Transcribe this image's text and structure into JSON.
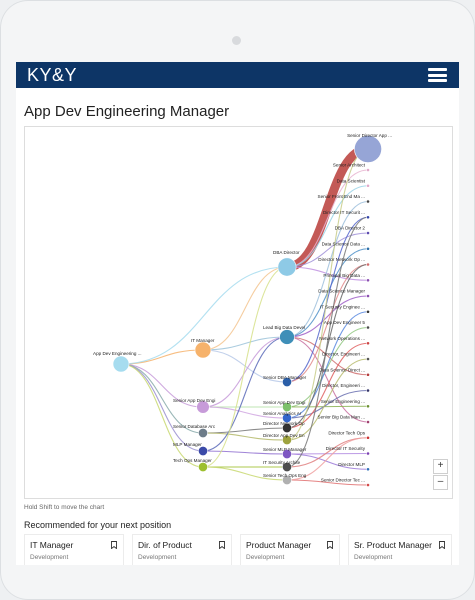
{
  "app": {
    "brand": "KY&Y"
  },
  "page": {
    "title": "App Dev Engineering Manager",
    "hint": "Hold Shift to move the chart",
    "zoom_in": "+",
    "zoom_out": "–"
  },
  "recommend": {
    "title": "Recommended for your next position",
    "cards": [
      {
        "title": "IT Manager",
        "subtitle": "Development"
      },
      {
        "title": "Dir. of Product",
        "subtitle": "Development"
      },
      {
        "title": "Product Manager",
        "subtitle": "Development"
      },
      {
        "title": "Sr. Product Manager",
        "subtitle": "Development"
      }
    ]
  },
  "chart_data": {
    "type": "sankey",
    "colors": {
      "accent_link": "#c0504d"
    },
    "nodes": [
      {
        "id": "root",
        "label": "App Dev Engineering ...",
        "color": "#a6dcef",
        "stage": 0,
        "size": 1
      },
      {
        "id": "itm",
        "label": "IT Manager",
        "color": "#f6b26b",
        "stage": 1,
        "size": 1
      },
      {
        "id": "sadeng",
        "label": "Senior App Dev Engi",
        "color": "#c79bd9",
        "stage": 1,
        "size": 0.7
      },
      {
        "id": "sdba",
        "label": "Senior Database Arc",
        "color": "#6d7c89",
        "stage": 1,
        "size": 0.4
      },
      {
        "id": "mlpm",
        "label": "MLP Manager",
        "color": "#3b4aa8",
        "stage": 1,
        "size": 0.4
      },
      {
        "id": "techops",
        "label": "Tech Ops Manager",
        "color": "#9dbf2e",
        "stage": 1,
        "size": 0.4
      },
      {
        "id": "dbadir",
        "label": "DBA Director",
        "color": "#8ecae6",
        "stage": 2,
        "size": 1.2
      },
      {
        "id": "lbdd",
        "label": "Lead Big Data Devel",
        "color": "#3f8fb8",
        "stage": 2,
        "size": 0.9
      },
      {
        "id": "sdbam",
        "label": "Senior DBA Manager",
        "color": "#2b5fa8",
        "stage": 2,
        "size": 0.4
      },
      {
        "id": "sadev",
        "label": "Senior App Dev Engi",
        "color": "#7cc16a",
        "stage": 2,
        "size": 0.4
      },
      {
        "id": "saa",
        "label": "Senior Analytics Ar",
        "color": "#3366cc",
        "stage": 2,
        "size": 0.4
      },
      {
        "id": "dnet",
        "label": "Director Network Op",
        "color": "#333333",
        "stage": 2,
        "size": 0.4
      },
      {
        "id": "dappdev",
        "label": "Director App Dev En",
        "color": "#9ea33f",
        "stage": 2,
        "size": 0.4
      },
      {
        "id": "smlpm",
        "label": "Senior MLP Manager",
        "color": "#7e57c2",
        "stage": 2,
        "size": 0.4
      },
      {
        "id": "itsa",
        "label": "IT Security Archite",
        "color": "#4d4d4d",
        "stage": 2,
        "size": 0.4
      },
      {
        "id": "stoe",
        "label": "Senior Tech Ops Eng",
        "color": "#b0b0b0",
        "stage": 2,
        "size": 0.4
      },
      {
        "id": "t1",
        "label": "Senior Director App ...",
        "color": "#96a5d6",
        "stage": 3,
        "size": 1.6
      },
      {
        "id": "t2",
        "label": "Senior Architect",
        "color": "#e0a9c9",
        "stage": 3,
        "size": 0.3
      },
      {
        "id": "t3",
        "label": "Data Scientist",
        "color": "#e0a9c9",
        "stage": 3,
        "size": 0.3
      },
      {
        "id": "t4",
        "label": "Senior Front End Ma ...",
        "color": "#444444",
        "stage": 3,
        "size": 0.3
      },
      {
        "id": "t5",
        "label": "Director IT Securit ...",
        "color": "#3344aa",
        "stage": 3,
        "size": 0.3
      },
      {
        "id": "t6",
        "label": "DBA Director 2",
        "color": "#5d4bb0",
        "stage": 3,
        "size": 0.3
      },
      {
        "id": "t7",
        "label": "Data Science Data ...",
        "color": "#2e6fa8",
        "stage": 3,
        "size": 0.3
      },
      {
        "id": "t8",
        "label": "Director Network Op ...",
        "color": "#d36b6b",
        "stage": 3,
        "size": 0.3
      },
      {
        "id": "t9",
        "label": "Principal Big Data ...",
        "color": "#8a4fb0",
        "stage": 3,
        "size": 0.3
      },
      {
        "id": "t10",
        "label": "Data Science Manager",
        "color": "#8a4fb0",
        "stage": 3,
        "size": 0.3
      },
      {
        "id": "t11",
        "label": "IT Security Enginee ...",
        "color": "#333333",
        "stage": 3,
        "size": 0.3
      },
      {
        "id": "t12",
        "label": "App Dev Engineer 5",
        "color": "#4a4a4a",
        "stage": 3,
        "size": 0.3
      },
      {
        "id": "t13",
        "label": "Network Operations ...",
        "color": "#c44",
        "stage": 3,
        "size": 0.3
      },
      {
        "id": "t14",
        "label": "Director, Engineeri ...",
        "color": "#555555",
        "stage": 3,
        "size": 0.3
      },
      {
        "id": "t15",
        "label": "Data Science Direct ...",
        "color": "#b43c3c",
        "stage": 3,
        "size": 0.3
      },
      {
        "id": "t16",
        "label": "Director, Engineeri ...",
        "color": "#333366",
        "stage": 3,
        "size": 0.3
      },
      {
        "id": "t17",
        "label": "Senior Engineering ...",
        "color": "#6a8f2f",
        "stage": 3,
        "size": 0.3
      },
      {
        "id": "t18",
        "label": "Senior Big Data Man ...",
        "color": "#a04070",
        "stage": 3,
        "size": 0.3
      },
      {
        "id": "t19",
        "label": "Director Tech Ops",
        "color": "#cc3333",
        "stage": 3,
        "size": 0.3
      },
      {
        "id": "t20",
        "label": "Director IT Security",
        "color": "#7a3fb0",
        "stage": 3,
        "size": 0.3
      },
      {
        "id": "t21",
        "label": "Director MLP",
        "color": "#2f6fb8",
        "stage": 3,
        "size": 0.3
      },
      {
        "id": "t22",
        "label": "Senior Director Tec ...",
        "color": "#d24a4a",
        "stage": 3,
        "size": 0.3
      }
    ],
    "links": [
      {
        "source": "root",
        "target": "itm",
        "color": "#f6b26b"
      },
      {
        "source": "root",
        "target": "sadeng",
        "color": "#c79bd9"
      },
      {
        "source": "root",
        "target": "sdba",
        "color": "#8aa"
      },
      {
        "source": "root",
        "target": "mlpm",
        "color": "#9a8fd0"
      },
      {
        "source": "root",
        "target": "techops",
        "color": "#c8d870"
      },
      {
        "source": "root",
        "target": "dbadir",
        "color": "#a6dcef"
      },
      {
        "source": "itm",
        "target": "dbadir",
        "color": "#f3c48f"
      },
      {
        "source": "itm",
        "target": "lbdd",
        "color": "#9cc3d9"
      },
      {
        "source": "itm",
        "target": "sdbam",
        "color": "#b6c8e8"
      },
      {
        "source": "sadeng",
        "target": "lbdd",
        "color": "#c79bd9"
      },
      {
        "source": "sadeng",
        "target": "sadev",
        "color": "#b4e0a6"
      },
      {
        "source": "sadeng",
        "target": "saa",
        "color": "#d0a6e0"
      },
      {
        "source": "sdba",
        "target": "dnet",
        "color": "#777777"
      },
      {
        "source": "sdba",
        "target": "dappdev",
        "color": "#b4b86a"
      },
      {
        "source": "mlpm",
        "target": "smlpm",
        "color": "#8f6fd0"
      },
      {
        "source": "mlpm",
        "target": "lbdd",
        "color": "#5a6ab8"
      },
      {
        "source": "techops",
        "target": "itsa",
        "color": "#9dbf2e"
      },
      {
        "source": "techops",
        "target": "stoe",
        "color": "#c8d870"
      },
      {
        "source": "techops",
        "target": "dbadir",
        "color": "#d6e08a"
      },
      {
        "source": "dbadir",
        "target": "t1",
        "color": "#c0504d"
      },
      {
        "source": "dbadir",
        "target": "t2",
        "color": "#e8b4d0"
      },
      {
        "source": "dbadir",
        "target": "t3",
        "color": "#9ad4e8"
      },
      {
        "source": "dbadir",
        "target": "t6",
        "color": "#a090d8"
      },
      {
        "source": "dbadir",
        "target": "t9",
        "color": "#c090e0"
      },
      {
        "source": "lbdd",
        "target": "t4",
        "color": "#9ec0dc"
      },
      {
        "source": "lbdd",
        "target": "t7",
        "color": "#4f90c8"
      },
      {
        "source": "lbdd",
        "target": "t10",
        "color": "#a060c8"
      },
      {
        "source": "lbdd",
        "target": "t15",
        "color": "#d07070"
      },
      {
        "source": "lbdd",
        "target": "t18",
        "color": "#c870a0"
      },
      {
        "source": "sdbam",
        "target": "t5",
        "color": "#5566cc"
      },
      {
        "source": "sdbam",
        "target": "t8",
        "color": "#e08a8a"
      },
      {
        "source": "sadev",
        "target": "t12",
        "color": "#90c880"
      },
      {
        "source": "sadev",
        "target": "t17",
        "color": "#88b050"
      },
      {
        "source": "saa",
        "target": "t11",
        "color": "#5a8ae0"
      },
      {
        "source": "saa",
        "target": "t16",
        "color": "#6a70b0"
      },
      {
        "source": "dnet",
        "target": "t13",
        "color": "#e06060"
      },
      {
        "source": "dnet",
        "target": "t8",
        "color": "#666666"
      },
      {
        "source": "dappdev",
        "target": "t14",
        "color": "#b8bc70"
      },
      {
        "source": "dappdev",
        "target": "t1",
        "color": "#c8cc88"
      },
      {
        "source": "smlpm",
        "target": "t21",
        "color": "#9a78d8"
      },
      {
        "source": "smlpm",
        "target": "t20",
        "color": "#b088e0"
      },
      {
        "source": "itsa",
        "target": "t19",
        "color": "#e08080"
      },
      {
        "source": "itsa",
        "target": "t5",
        "color": "#777777"
      },
      {
        "source": "stoe",
        "target": "t22",
        "color": "#e07070"
      },
      {
        "source": "stoe",
        "target": "t19",
        "color": "#f0a0a0"
      }
    ]
  }
}
